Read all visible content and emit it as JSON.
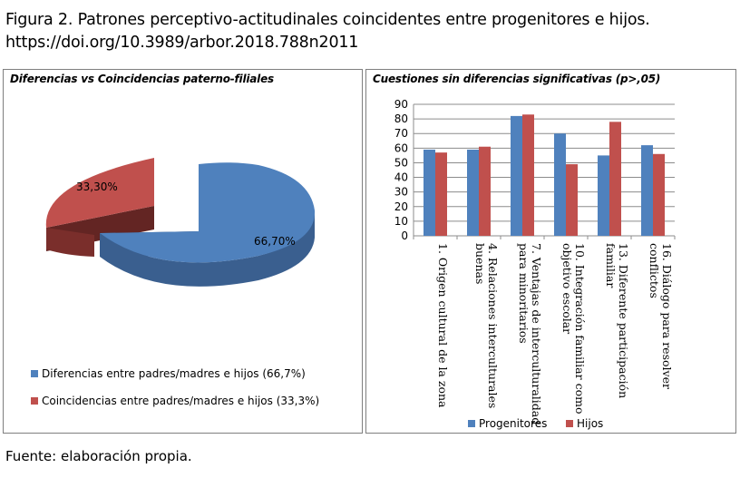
{
  "caption": {
    "line1": "Figura 2. Patrones perceptivo-actitudinales coincidentes entre progenitores e hijos.",
    "line2": "https://doi.org/10.3989/arbor.2018.788n2011"
  },
  "source_note": "Fuente: elaboración propia.",
  "chart_data": [
    {
      "type": "pie",
      "title": "Diferencias vs Coincidencias paterno-filiales",
      "slices": [
        {
          "label": "Diferencias entre padres/madres e hijos (66,7%)",
          "value": 66.7,
          "data_label": "66,70%",
          "color": "#4f81bd"
        },
        {
          "label": "Coincidencias entre padres/madres e hijos (33,3%)",
          "value": 33.3,
          "data_label": "33,30%",
          "color": "#c0504d"
        }
      ],
      "style": "3d exploded",
      "legend_position": "bottom"
    },
    {
      "type": "bar",
      "title": "Cuestiones sin diferencias significativas (p>,05)",
      "categories": [
        "1. Origen cultural de la zona",
        "4. Relaciones interculturales buenas",
        "7. Ventajas de interculturalidad para minoritarios",
        "10. Integración familiar como objetivo escolar",
        "13. Diferente participación familiar",
        "16. Diálogo para resolver conflictos"
      ],
      "category_lines": [
        [
          "1. Origen cultural de la zona"
        ],
        [
          "4. Relaciones interculturales",
          "buenas"
        ],
        [
          "7. Ventajas de interculturalidad",
          "para minoritarios"
        ],
        [
          "10. Integración familiar como",
          "objetivo escolar"
        ],
        [
          "13. Diferente participación",
          "familiar"
        ],
        [
          "16. Diálogo para resolver",
          "conflictos"
        ]
      ],
      "series": [
        {
          "name": "Progenitores",
          "color": "#4f81bd",
          "values": [
            59,
            59,
            82,
            70,
            55,
            62
          ]
        },
        {
          "name": "Hijos",
          "color": "#c0504d",
          "values": [
            57,
            61,
            83,
            49,
            78,
            56
          ]
        }
      ],
      "ylim": [
        0,
        90
      ],
      "yticks": [
        "0",
        "10",
        "20",
        "30",
        "40",
        "50",
        "60",
        "70",
        "80",
        "90"
      ],
      "grid": true,
      "legend_position": "bottom"
    }
  ]
}
